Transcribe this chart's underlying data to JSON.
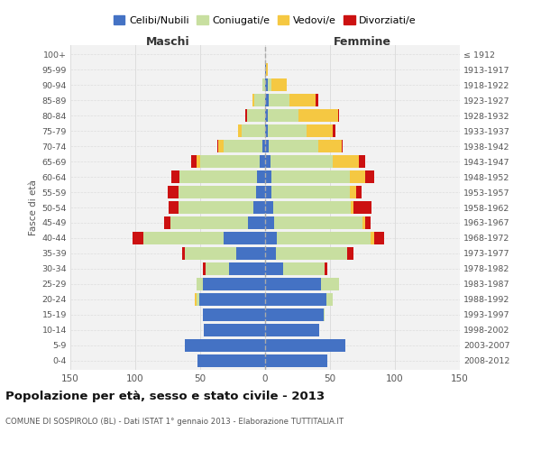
{
  "age_groups": [
    "0-4",
    "5-9",
    "10-14",
    "15-19",
    "20-24",
    "25-29",
    "30-34",
    "35-39",
    "40-44",
    "45-49",
    "50-54",
    "55-59",
    "60-64",
    "65-69",
    "70-74",
    "75-79",
    "80-84",
    "85-89",
    "90-94",
    "95-99",
    "100+"
  ],
  "birth_years": [
    "2008-2012",
    "2003-2007",
    "1998-2002",
    "1993-1997",
    "1988-1992",
    "1983-1987",
    "1978-1982",
    "1973-1977",
    "1968-1972",
    "1963-1967",
    "1958-1962",
    "1953-1957",
    "1948-1952",
    "1943-1947",
    "1938-1942",
    "1933-1937",
    "1928-1932",
    "1923-1927",
    "1918-1922",
    "1913-1917",
    "≤ 1912"
  ],
  "male": {
    "celibe": [
      52,
      62,
      47,
      48,
      51,
      48,
      28,
      22,
      32,
      13,
      9,
      7,
      6,
      4,
      2,
      0,
      0,
      0,
      0,
      0,
      0
    ],
    "coniugato": [
      0,
      0,
      0,
      0,
      2,
      5,
      18,
      40,
      62,
      60,
      58,
      60,
      60,
      46,
      30,
      18,
      14,
      8,
      2,
      0,
      0
    ],
    "vedovo": [
      0,
      0,
      0,
      0,
      1,
      0,
      0,
      0,
      0,
      0,
      0,
      0,
      0,
      3,
      4,
      3,
      0,
      2,
      0,
      0,
      0
    ],
    "divorziato": [
      0,
      0,
      0,
      0,
      0,
      0,
      2,
      2,
      8,
      5,
      7,
      8,
      6,
      4,
      1,
      0,
      1,
      0,
      0,
      0,
      0
    ]
  },
  "female": {
    "nubile": [
      48,
      62,
      42,
      45,
      47,
      43,
      14,
      8,
      9,
      7,
      6,
      5,
      5,
      4,
      3,
      2,
      2,
      3,
      2,
      1,
      0
    ],
    "coniugata": [
      0,
      0,
      0,
      1,
      5,
      14,
      32,
      55,
      72,
      68,
      60,
      60,
      60,
      48,
      38,
      30,
      24,
      16,
      3,
      0,
      0
    ],
    "vedova": [
      0,
      0,
      0,
      0,
      0,
      0,
      0,
      0,
      3,
      2,
      2,
      5,
      12,
      20,
      18,
      20,
      30,
      20,
      12,
      1,
      0
    ],
    "divorziata": [
      0,
      0,
      0,
      0,
      0,
      0,
      2,
      5,
      8,
      4,
      14,
      4,
      7,
      5,
      1,
      2,
      1,
      2,
      0,
      0,
      0
    ]
  },
  "colors": {
    "celibe": "#4472C4",
    "coniugato": "#C8DFA0",
    "vedovo": "#F5C842",
    "divorziato": "#CC1111"
  },
  "title": "Popolazione per età, sesso e stato civile - 2013",
  "subtitle": "COMUNE DI SOSPIROLO (BL) - Dati ISTAT 1° gennaio 2013 - Elaborazione TUTTITALIA.IT",
  "xlabel_left": "Maschi",
  "xlabel_right": "Femmine",
  "ylabel_left": "Fasce di età",
  "xlim": 150,
  "legend_labels": [
    "Celibi/Nubili",
    "Coniugati/e",
    "Vedovi/e",
    "Divorziati/e"
  ],
  "background_color": "#FFFFFF",
  "plot_bg_color": "#F2F2F2",
  "grid_color": "#DDDDDD"
}
